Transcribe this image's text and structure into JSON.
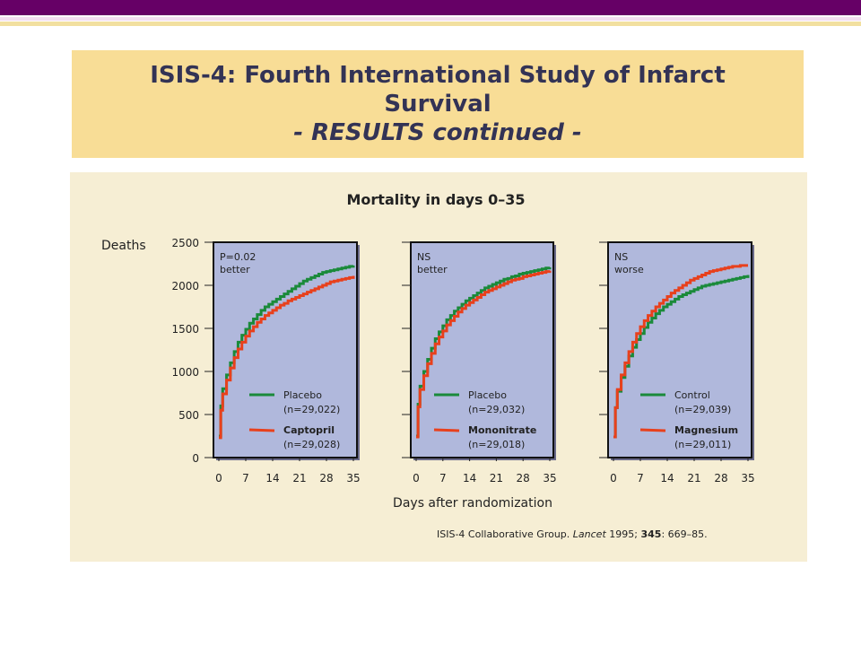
{
  "slide": {
    "title_line1": "ISIS-4: Fourth International Study of Infarct",
    "title_line2": "Survival",
    "title_line3": "- RESULTS continued -"
  },
  "colors": {
    "header_bar": "#660066",
    "title_bg": "#f8dd96",
    "panel_bg": "#f6eed4",
    "plot_bg": "#b0b8dc",
    "green": "#1a8a3a",
    "red": "#e8401c"
  },
  "chart_data": {
    "type": "line",
    "title": "Mortality in days 0–35",
    "ylabel": "Deaths",
    "xlabel": "Days after randomization",
    "ylim": [
      0,
      2500
    ],
    "xlim": [
      0,
      35
    ],
    "yticks": [
      "0",
      "500",
      "1000",
      "1500",
      "2000",
      "2500"
    ],
    "xticks": [
      "0",
      "7",
      "14",
      "21",
      "28",
      "35"
    ],
    "x": [
      0,
      0.5,
      1,
      2,
      3,
      4,
      5,
      6,
      7,
      8,
      9,
      10,
      11,
      12,
      13,
      14,
      15,
      16,
      17,
      18,
      19,
      20,
      21,
      22,
      23,
      24,
      25,
      26,
      27,
      28,
      29,
      30,
      31,
      32,
      33,
      34,
      35
    ],
    "panels": [
      {
        "annotation": [
          "P=0.02",
          "better"
        ],
        "series": [
          {
            "name": "Placebo",
            "n": "(n=29,022)",
            "bold": false,
            "color": "green",
            "values": [
              250,
              600,
              800,
              960,
              1100,
              1230,
              1340,
              1420,
              1490,
              1560,
              1610,
              1660,
              1710,
              1750,
              1780,
              1810,
              1840,
              1870,
              1900,
              1930,
              1960,
              1990,
              2020,
              2050,
              2070,
              2090,
              2110,
              2130,
              2150,
              2160,
              2170,
              2180,
              2190,
              2200,
              2210,
              2220,
              2230
            ]
          },
          {
            "name": "Captopril",
            "n": "(n=29,028)",
            "bold": true,
            "color": "red",
            "values": [
              230,
              550,
              740,
              900,
              1040,
              1160,
              1260,
              1340,
              1410,
              1470,
              1520,
              1570,
              1610,
              1650,
              1680,
              1710,
              1740,
              1770,
              1790,
              1820,
              1840,
              1860,
              1880,
              1900,
              1920,
              1940,
              1960,
              1980,
              2000,
              2020,
              2040,
              2050,
              2060,
              2070,
              2080,
              2090,
              2110
            ]
          }
        ]
      },
      {
        "annotation": [
          "NS",
          "better"
        ],
        "series": [
          {
            "name": "Placebo",
            "n": "(n=29,032)",
            "bold": false,
            "color": "green",
            "values": [
              250,
              620,
              830,
              1000,
              1140,
              1270,
              1380,
              1460,
              1530,
              1600,
              1650,
              1700,
              1740,
              1780,
              1820,
              1850,
              1880,
              1910,
              1940,
              1970,
              1990,
              2010,
              2030,
              2050,
              2070,
              2080,
              2100,
              2110,
              2130,
              2140,
              2150,
              2160,
              2170,
              2180,
              2190,
              2200,
              2210
            ]
          },
          {
            "name": "Mononitrate",
            "n": "(n=29,018)",
            "bold": true,
            "color": "red",
            "values": [
              240,
              590,
              790,
              950,
              1090,
              1210,
              1320,
              1400,
              1470,
              1540,
              1590,
              1640,
              1690,
              1730,
              1770,
              1800,
              1830,
              1860,
              1890,
              1920,
              1940,
              1960,
              1980,
              2000,
              2020,
              2040,
              2060,
              2070,
              2080,
              2100,
              2110,
              2120,
              2130,
              2140,
              2150,
              2160,
              2170
            ]
          }
        ]
      },
      {
        "annotation": [
          "NS",
          "worse"
        ],
        "series": [
          {
            "name": "Control",
            "n": "(n=29,039)",
            "bold": false,
            "color": "green",
            "values": [
              240,
              580,
              770,
              930,
              1060,
              1180,
              1280,
              1370,
              1440,
              1510,
              1570,
              1620,
              1670,
              1710,
              1750,
              1780,
              1810,
              1840,
              1870,
              1890,
              1910,
              1930,
              1950,
              1970,
              1990,
              2000,
              2010,
              2020,
              2030,
              2040,
              2050,
              2060,
              2070,
              2080,
              2090,
              2100,
              2120
            ]
          },
          {
            "name": "Magnesium",
            "n": "(n=29,011)",
            "bold": true,
            "color": "red",
            "values": [
              240,
              580,
              790,
              960,
              1100,
              1230,
              1340,
              1440,
              1520,
              1590,
              1650,
              1700,
              1750,
              1790,
              1830,
              1870,
              1910,
              1940,
              1970,
              2000,
              2030,
              2060,
              2080,
              2100,
              2120,
              2140,
              2160,
              2170,
              2180,
              2190,
              2200,
              2210,
              2220,
              2220,
              2230,
              2230,
              2230
            ]
          }
        ]
      }
    ]
  },
  "citation": {
    "prefix": "ISIS-4 Collaborative Group. ",
    "journal": "Lancet",
    "year": " 1995; ",
    "volume": "345",
    "pages": ": 669–85."
  }
}
